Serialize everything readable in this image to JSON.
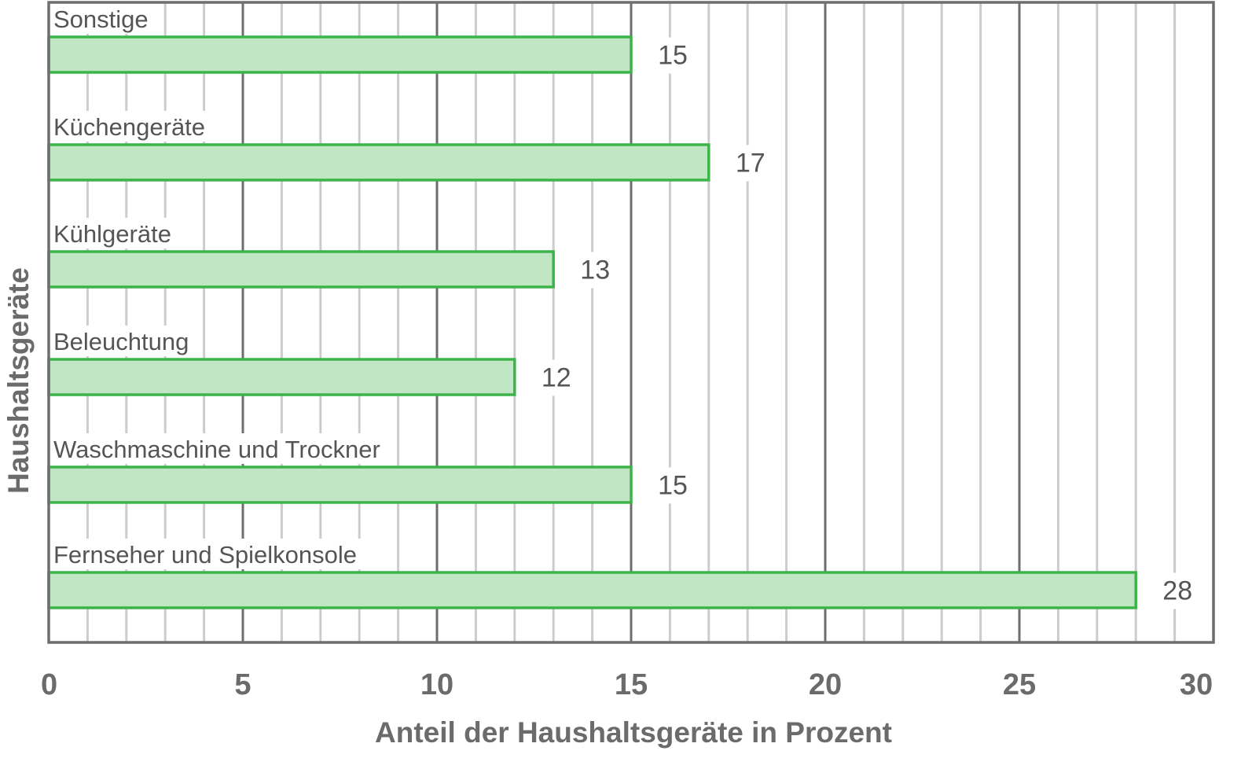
{
  "chart_data": {
    "type": "bar",
    "orientation": "horizontal",
    "categories": [
      "Sonstige",
      "Küchengeräte",
      "Kühlgeräte",
      "Beleuchtung",
      "Waschmaschine und Trockner",
      "Fernseher und Spielkonsole"
    ],
    "values": [
      15,
      17,
      13,
      12,
      15,
      28
    ],
    "xlabel": "Anteil der Haushaltsgeräte in Prozent",
    "ylabel": "Haushaltsgeräte",
    "xlim": [
      0,
      30
    ],
    "x_ticks": [
      "0",
      "5",
      "10",
      "15",
      "20",
      "25",
      "30"
    ],
    "grid": "vertical, major every 5, minor every 1",
    "legend": "none",
    "colors": {
      "bar_fill": "#c0e6c3",
      "bar_stroke": "#3cb44a",
      "major_grid": "#6e6e6e",
      "minor_grid": "#cccccc",
      "frame": "#6e6e6e",
      "text": "#555555",
      "axis_text": "#6b6b6b"
    }
  }
}
